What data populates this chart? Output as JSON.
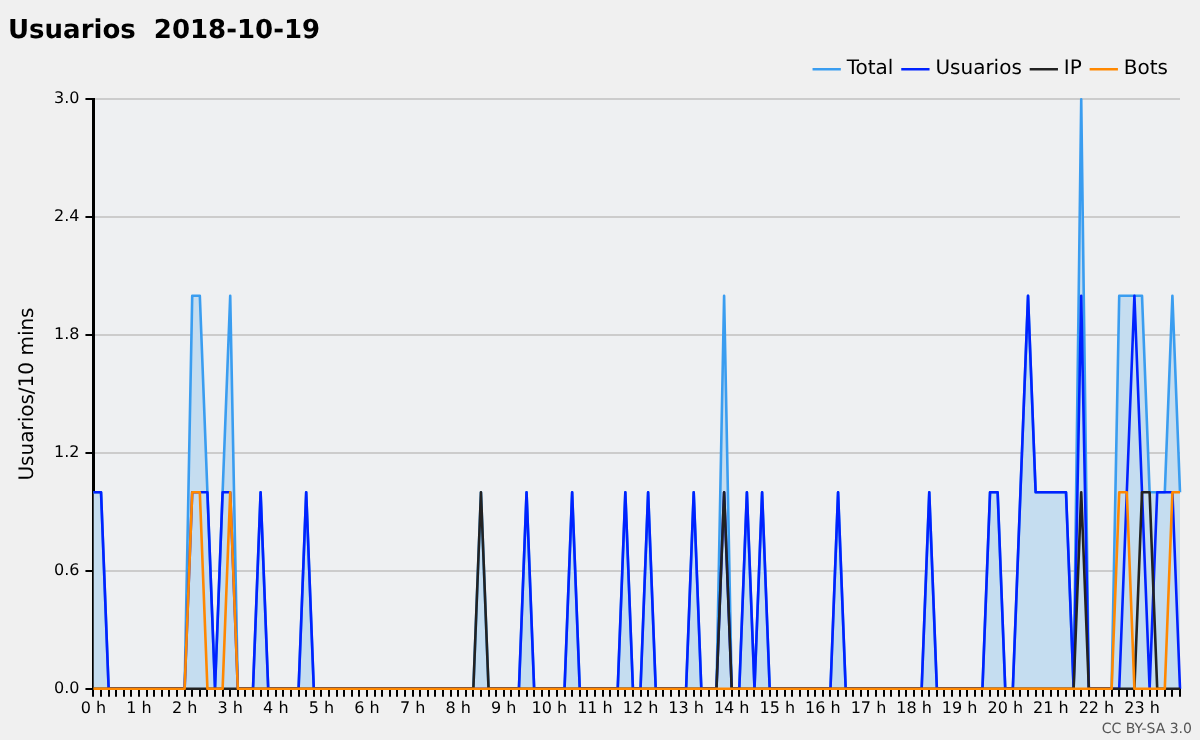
{
  "chart_data": {
    "type": "line",
    "title": "Usuarios  2018-10-19",
    "ylabel": "Usuarios/10 mins",
    "categories": [
      "0 h",
      null,
      null,
      null,
      null,
      null,
      "1 h",
      null,
      null,
      null,
      null,
      null,
      "2 h",
      null,
      null,
      null,
      null,
      null,
      "3 h",
      null,
      null,
      null,
      null,
      null,
      "4 h",
      null,
      null,
      null,
      null,
      null,
      "5 h",
      null,
      null,
      null,
      null,
      null,
      "6 h",
      null,
      null,
      null,
      null,
      null,
      "7 h",
      null,
      null,
      null,
      null,
      null,
      "8 h",
      null,
      null,
      null,
      null,
      null,
      "9 h",
      null,
      null,
      null,
      null,
      null,
      "10 h",
      null,
      null,
      null,
      null,
      null,
      "11 h",
      null,
      null,
      null,
      null,
      null,
      "12 h",
      null,
      null,
      null,
      null,
      null,
      "13 h",
      null,
      null,
      null,
      null,
      null,
      "14 h",
      null,
      null,
      null,
      null,
      null,
      "15 h",
      null,
      null,
      null,
      null,
      null,
      "16 h",
      null,
      null,
      null,
      null,
      null,
      "17 h",
      null,
      null,
      null,
      null,
      null,
      "18 h",
      null,
      null,
      null,
      null,
      null,
      "19 h",
      null,
      null,
      null,
      null,
      null,
      "20 h",
      null,
      null,
      null,
      null,
      null,
      "21 h",
      null,
      null,
      null,
      null,
      null,
      "22 h",
      null,
      null,
      null,
      null,
      null,
      "23 h",
      null,
      null,
      null,
      null,
      null
    ],
    "series": [
      {
        "name": "Total",
        "type": "area",
        "color": "#3a9df0",
        "values": [
          1,
          1,
          0,
          0,
          0,
          0,
          0,
          0,
          0,
          0,
          0,
          0,
          0,
          2,
          2,
          1,
          0,
          1,
          2,
          0,
          0,
          0,
          1,
          0,
          0,
          0,
          0,
          0,
          1,
          0,
          0,
          0,
          0,
          0,
          0,
          0,
          0,
          0,
          0,
          0,
          0,
          0,
          0,
          0,
          0,
          0,
          0,
          0,
          0,
          0,
          0,
          1,
          0,
          0,
          0,
          0,
          0,
          1,
          0,
          0,
          0,
          0,
          0,
          1,
          0,
          0,
          0,
          0,
          0,
          0,
          1,
          0,
          0,
          1,
          0,
          0,
          0,
          0,
          0,
          1,
          0,
          0,
          0,
          2,
          0,
          0,
          1,
          0,
          1,
          0,
          0,
          0,
          0,
          0,
          0,
          0,
          0,
          0,
          1,
          0,
          0,
          0,
          0,
          0,
          0,
          0,
          0,
          0,
          0,
          0,
          1,
          0,
          0,
          0,
          0,
          0,
          0,
          0,
          1,
          1,
          0,
          0,
          1,
          2,
          1,
          1,
          1,
          1,
          1,
          0,
          3,
          0,
          0,
          0,
          0,
          2,
          2,
          2,
          2,
          1,
          1,
          1,
          2,
          1
        ]
      },
      {
        "name": "Usuarios",
        "color": "#0022ff",
        "values": [
          1,
          1,
          0,
          0,
          0,
          0,
          0,
          0,
          0,
          0,
          0,
          0,
          0,
          1,
          1,
          1,
          0,
          1,
          1,
          0,
          0,
          0,
          1,
          0,
          0,
          0,
          0,
          0,
          1,
          0,
          0,
          0,
          0,
          0,
          0,
          0,
          0,
          0,
          0,
          0,
          0,
          0,
          0,
          0,
          0,
          0,
          0,
          0,
          0,
          0,
          0,
          0,
          0,
          0,
          0,
          0,
          0,
          1,
          0,
          0,
          0,
          0,
          0,
          1,
          0,
          0,
          0,
          0,
          0,
          0,
          1,
          0,
          0,
          1,
          0,
          0,
          0,
          0,
          0,
          1,
          0,
          0,
          0,
          1,
          0,
          0,
          1,
          0,
          1,
          0,
          0,
          0,
          0,
          0,
          0,
          0,
          0,
          0,
          1,
          0,
          0,
          0,
          0,
          0,
          0,
          0,
          0,
          0,
          0,
          0,
          1,
          0,
          0,
          0,
          0,
          0,
          0,
          0,
          1,
          1,
          0,
          0,
          1,
          2,
          1,
          1,
          1,
          1,
          1,
          0,
          2,
          0,
          0,
          0,
          0,
          0,
          1,
          2,
          1,
          0,
          1,
          1,
          1,
          0
        ]
      },
      {
        "name": "IP",
        "color": "#222222",
        "values": [
          0,
          0,
          0,
          0,
          0,
          0,
          0,
          0,
          0,
          0,
          0,
          0,
          0,
          0,
          0,
          0,
          0,
          0,
          0,
          0,
          0,
          0,
          0,
          0,
          0,
          0,
          0,
          0,
          0,
          0,
          0,
          0,
          0,
          0,
          0,
          0,
          0,
          0,
          0,
          0,
          0,
          0,
          0,
          0,
          0,
          0,
          0,
          0,
          0,
          0,
          0,
          1,
          0,
          0,
          0,
          0,
          0,
          0,
          0,
          0,
          0,
          0,
          0,
          0,
          0,
          0,
          0,
          0,
          0,
          0,
          0,
          0,
          0,
          0,
          0,
          0,
          0,
          0,
          0,
          0,
          0,
          0,
          0,
          1,
          0,
          0,
          0,
          0,
          0,
          0,
          0,
          0,
          0,
          0,
          0,
          0,
          0,
          0,
          0,
          0,
          0,
          0,
          0,
          0,
          0,
          0,
          0,
          0,
          0,
          0,
          0,
          0,
          0,
          0,
          0,
          0,
          0,
          0,
          0,
          0,
          0,
          0,
          0,
          0,
          0,
          0,
          0,
          0,
          0,
          0,
          1,
          0,
          0,
          0,
          0,
          0,
          0,
          0,
          1,
          1,
          0,
          0,
          0,
          0
        ]
      },
      {
        "name": "Bots",
        "color": "#ff8800",
        "values": [
          0,
          0,
          0,
          0,
          0,
          0,
          0,
          0,
          0,
          0,
          0,
          0,
          0,
          1,
          1,
          0,
          0,
          0,
          1,
          0,
          0,
          0,
          0,
          0,
          0,
          0,
          0,
          0,
          0,
          0,
          0,
          0,
          0,
          0,
          0,
          0,
          0,
          0,
          0,
          0,
          0,
          0,
          0,
          0,
          0,
          0,
          0,
          0,
          0,
          0,
          0,
          0,
          0,
          0,
          0,
          0,
          0,
          0,
          0,
          0,
          0,
          0,
          0,
          0,
          0,
          0,
          0,
          0,
          0,
          0,
          0,
          0,
          0,
          0,
          0,
          0,
          0,
          0,
          0,
          0,
          0,
          0,
          0,
          0,
          0,
          0,
          0,
          0,
          0,
          0,
          0,
          0,
          0,
          0,
          0,
          0,
          0,
          0,
          0,
          0,
          0,
          0,
          0,
          0,
          0,
          0,
          0,
          0,
          0,
          0,
          0,
          0,
          0,
          0,
          0,
          0,
          0,
          0,
          0,
          0,
          0,
          0,
          0,
          0,
          0,
          0,
          0,
          0,
          0,
          0,
          0,
          0,
          0,
          0,
          0,
          1,
          1,
          0,
          0,
          0,
          0,
          0,
          1,
          1
        ]
      }
    ],
    "ylim": [
      0,
      3
    ],
    "yticks": [
      {
        "value": 0,
        "label": "0.0"
      },
      {
        "value": 0.6,
        "label": "0.6"
      },
      {
        "value": 1.2,
        "label": "1.2"
      },
      {
        "value": 1.8,
        "label": "1.8"
      },
      {
        "value": 2.4,
        "label": "2.4"
      },
      {
        "value": 3,
        "label": "3.0"
      }
    ],
    "grid": "y",
    "legend": "top right",
    "marker": "none",
    "line_style": "solid",
    "annotations": [
      "CC BY-SA 3.0"
    ]
  }
}
